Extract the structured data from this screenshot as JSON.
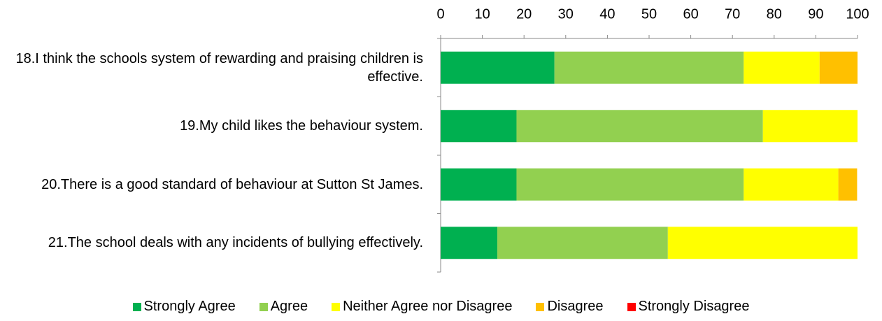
{
  "chart_data": {
    "type": "stacked-barh",
    "categories": [
      "18.I think the schools system of rewarding and praising children is effective.",
      "19.My child likes the behaviour system.",
      "20.There is a good standard of behaviour at Sutton St James.",
      "21.The school deals with any incidents of bullying effectively."
    ],
    "series": [
      {
        "name": "Strongly Agree",
        "color": "#00b050",
        "values": [
          27.3,
          18.2,
          18.2,
          13.6
        ]
      },
      {
        "name": "Agree",
        "color": "#92d050",
        "values": [
          45.4,
          59.1,
          54.5,
          40.9
        ]
      },
      {
        "name": "Neither Agree nor Disagree",
        "color": "#ffff00",
        "values": [
          18.2,
          22.7,
          22.7,
          45.5
        ]
      },
      {
        "name": "Disagree",
        "color": "#ffc000",
        "values": [
          9.1,
          0,
          4.5,
          0
        ]
      },
      {
        "name": "Strongly Disagree",
        "color": "#ff0000",
        "values": [
          0,
          0,
          0,
          0
        ]
      }
    ],
    "xlim": [
      0,
      100
    ],
    "xticks": [
      0,
      10,
      20,
      30,
      40,
      50,
      60,
      70,
      80,
      90,
      100
    ],
    "grid": false,
    "legend": "bottom"
  }
}
